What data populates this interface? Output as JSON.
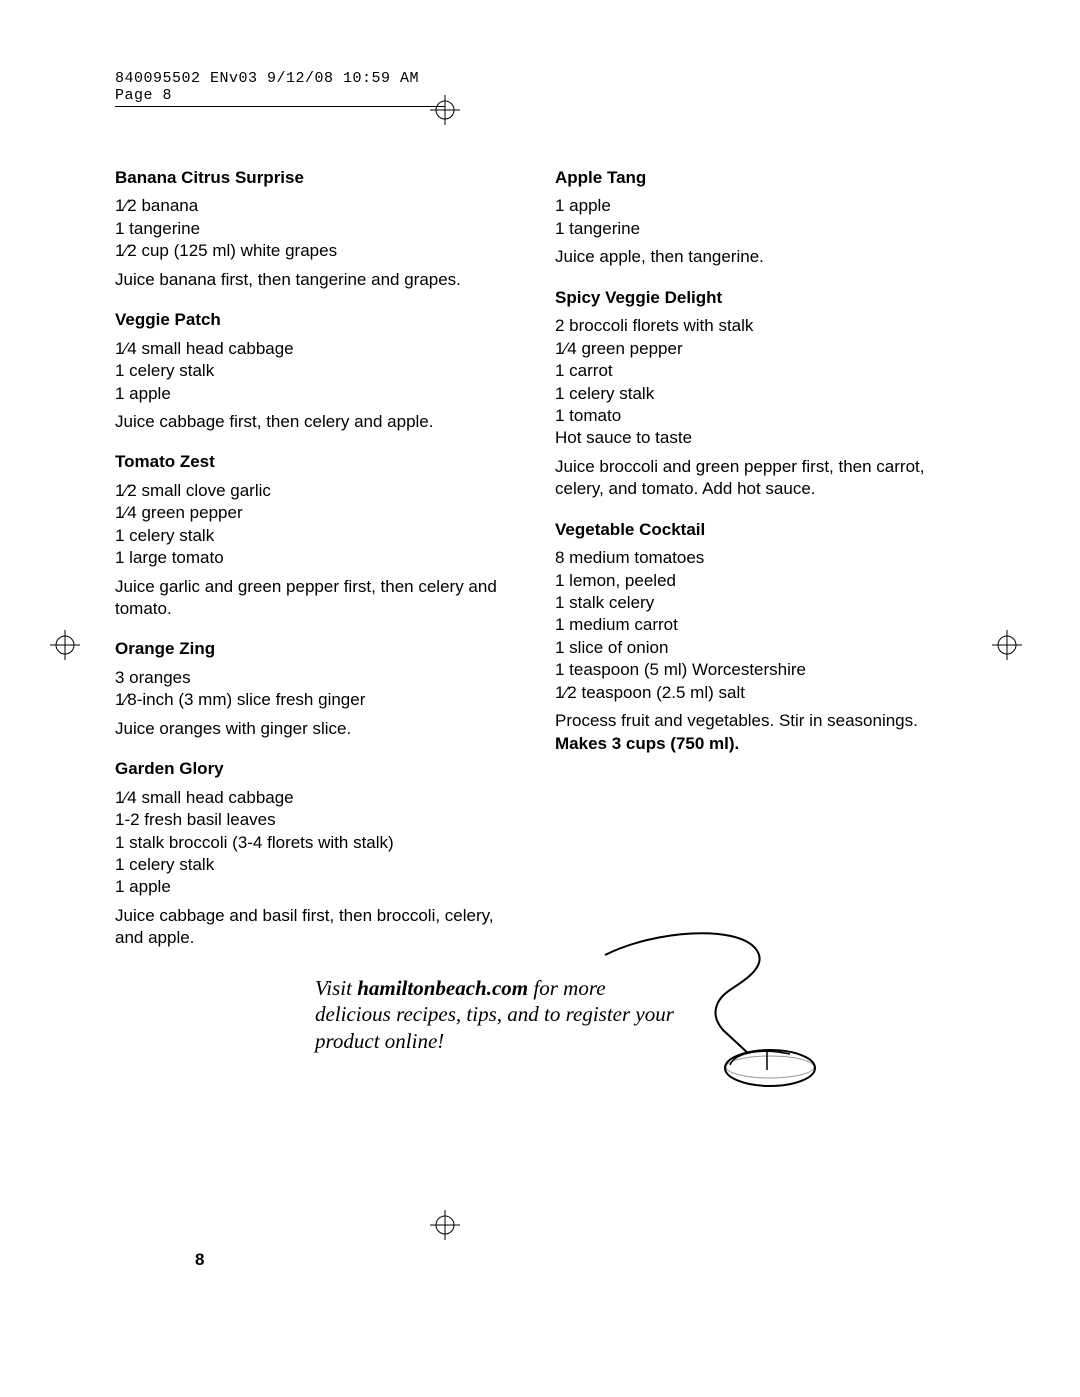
{
  "header": "840095502 ENv03  9/12/08  10:59 AM  Page 8",
  "pageNumber": "8",
  "leftRecipes": [
    {
      "title": "Banana Citrus Surprise",
      "ingredients": [
        "1⁄2 banana",
        "1 tangerine",
        "1⁄2 cup (125 ml) white grapes"
      ],
      "instructions": "Juice banana first, then tangerine and grapes."
    },
    {
      "title": "Veggie Patch",
      "ingredients": [
        "1⁄4 small head cabbage",
        "1 celery stalk",
        "1 apple"
      ],
      "instructions": "Juice cabbage first, then celery and apple."
    },
    {
      "title": "Tomato Zest",
      "ingredients": [
        "1⁄2 small clove garlic",
        "1⁄4 green pepper",
        "1 celery stalk",
        "1 large tomato"
      ],
      "instructions": "Juice garlic and green pepper first, then celery and tomato."
    },
    {
      "title": "Orange Zing",
      "ingredients": [
        "3 oranges",
        "1⁄8-inch (3 mm) slice fresh ginger"
      ],
      "instructions": "Juice oranges with ginger slice."
    },
    {
      "title": "Garden Glory",
      "ingredients": [
        "1⁄4 small head cabbage",
        "1-2 fresh basil leaves",
        "1 stalk broccoli (3-4 florets with stalk)",
        "1 celery stalk",
        "1 apple"
      ],
      "instructions": "Juice cabbage and basil first, then broccoli, celery, and apple."
    }
  ],
  "rightRecipes": [
    {
      "title": "Apple Tang",
      "ingredients": [
        "1 apple",
        "1 tangerine"
      ],
      "instructions": "Juice apple, then tangerine."
    },
    {
      "title": "Spicy Veggie Delight",
      "ingredients": [
        "2 broccoli florets with stalk",
        "1⁄4 green pepper",
        "1 carrot",
        "1 celery stalk",
        "1 tomato",
        "Hot sauce to taste"
      ],
      "instructions": "Juice broccoli and green pepper first, then carrot, celery, and tomato. Add hot sauce."
    },
    {
      "title": "Vegetable Cocktail",
      "ingredients": [
        "8 medium tomatoes",
        "1 lemon, peeled",
        "1 stalk celery",
        "1 medium carrot",
        "1 slice of onion",
        "1 teaspoon (5 ml) Worcestershire",
        "1⁄2 teaspoon (2.5 ml) salt"
      ],
      "instructions": "Process fruit and vegetables. Stir in seasonings. ",
      "instructionsBold": "Makes 3 cups (750 ml)."
    }
  ],
  "promo": {
    "prefix": "Visit ",
    "bold": "hamiltonbeach.com",
    "suffix": " for more delicious recipes, tips, and to register your product online!"
  }
}
